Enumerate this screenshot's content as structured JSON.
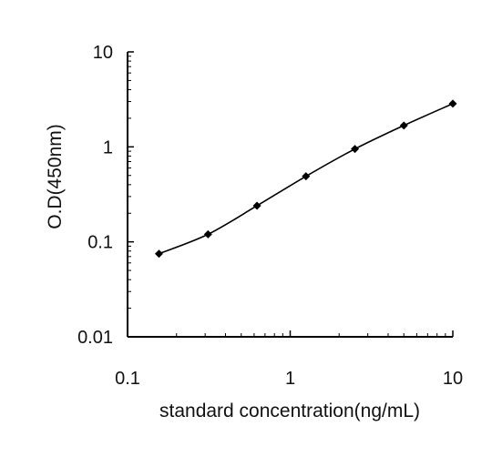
{
  "chart_data": {
    "type": "line",
    "title": "",
    "xlabel": "standard concentration(ng/mL)",
    "ylabel": "O.D(450nm)",
    "x_scale": "log",
    "y_scale": "log",
    "xlim": [
      0.1,
      10
    ],
    "ylim": [
      0.01,
      10
    ],
    "x_ticks": [
      0.1,
      1,
      10
    ],
    "x_tick_labels": [
      "0.1",
      "1",
      "10"
    ],
    "y_ticks": [
      0.01,
      0.1,
      1,
      10
    ],
    "y_tick_labels": [
      "0.01",
      "0.1",
      "1",
      "10"
    ],
    "grid": false,
    "legend": "none",
    "marker": "diamond",
    "color": "#000000",
    "series": [
      {
        "x": [
          0.156,
          0.3125,
          0.625,
          1.25,
          2.5,
          5,
          10
        ],
        "y": [
          0.075,
          0.12,
          0.24,
          0.49,
          0.95,
          1.68,
          2.85
        ]
      }
    ]
  }
}
